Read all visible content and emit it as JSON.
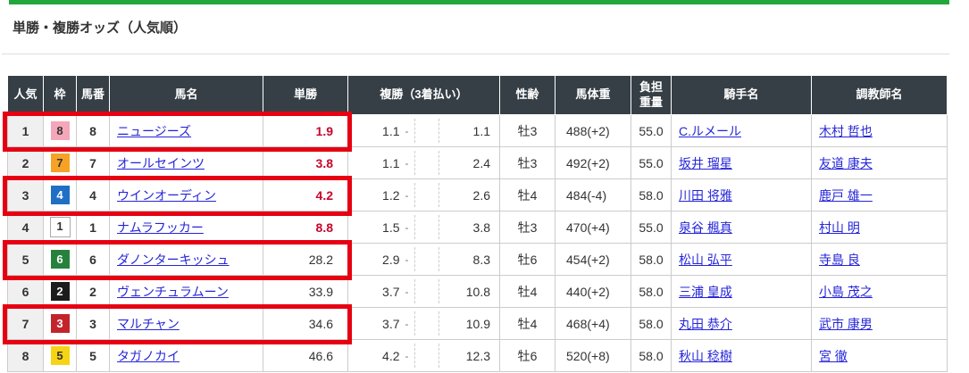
{
  "page": {
    "title": "単勝・複勝オッズ（人気順）",
    "colors": {
      "accent_green_bar": "#22a73c",
      "highlight_box_red": "#e60012",
      "hot_odds_red": "#c9042c",
      "link_blue": "#2525d9",
      "header_bg": "#363f46",
      "rank_column_bg": "#f0f0f0",
      "frame_1_white": "#ffffff",
      "frame_2_black": "#1c1c1c",
      "frame_3_red": "#c3242b",
      "frame_4_blue": "#1f6fc5",
      "frame_5_yellow": "#f6d415",
      "frame_6_green": "#27813d",
      "frame_7_orange": "#f6a226",
      "frame_8_pink": "#f4a7b9"
    }
  },
  "odds_table": {
    "headers": {
      "rank": "人気",
      "waku": "枠",
      "uma": "馬番",
      "name": "馬名",
      "tan": "単勝",
      "fuku": "複勝（3着払い）",
      "sei": "性齢",
      "weight": "馬体重",
      "futan_line1": "負担",
      "futan_line2": "重量",
      "jockey": "騎手名",
      "trainer": "調教師名"
    },
    "fuku_separator": "-",
    "rows": [
      {
        "rank": "1",
        "waku": "8",
        "uma": "8",
        "name": "ニュージーズ",
        "tan": "1.9",
        "tan_hot": true,
        "fuku_low": "1.1",
        "fuku_high": "1.1",
        "sei": "牡3",
        "weight": "488(+2)",
        "futan": "55.0",
        "jockey": "C.ルメール",
        "trainer": "木村 哲也",
        "highlighted": true
      },
      {
        "rank": "2",
        "waku": "7",
        "uma": "7",
        "name": "オールセインツ",
        "tan": "3.8",
        "tan_hot": true,
        "fuku_low": "1.1",
        "fuku_high": "2.4",
        "sei": "牡3",
        "weight": "492(+2)",
        "futan": "55.0",
        "jockey": "坂井 瑠星",
        "trainer": "友道 康夫",
        "highlighted": false
      },
      {
        "rank": "3",
        "waku": "4",
        "uma": "4",
        "name": "ウインオーディン",
        "tan": "4.2",
        "tan_hot": true,
        "fuku_low": "1.2",
        "fuku_high": "2.6",
        "sei": "牡4",
        "weight": "484(-4)",
        "futan": "58.0",
        "jockey": "川田 将雅",
        "trainer": "鹿戸 雄一",
        "highlighted": true
      },
      {
        "rank": "4",
        "waku": "1",
        "uma": "1",
        "name": "ナムラフッカー",
        "tan": "8.8",
        "tan_hot": true,
        "fuku_low": "1.5",
        "fuku_high": "3.8",
        "sei": "牡3",
        "weight": "470(+4)",
        "futan": "55.0",
        "jockey": "泉谷 楓真",
        "trainer": "村山 明",
        "highlighted": false
      },
      {
        "rank": "5",
        "waku": "6",
        "uma": "6",
        "name": "ダノンターキッシュ",
        "tan": "28.2",
        "tan_hot": false,
        "fuku_low": "2.9",
        "fuku_high": "8.3",
        "sei": "牡6",
        "weight": "454(+2)",
        "futan": "58.0",
        "jockey": "松山 弘平",
        "trainer": "寺島 良",
        "highlighted": true
      },
      {
        "rank": "6",
        "waku": "2",
        "uma": "2",
        "name": "ヴェンチュラムーン",
        "tan": "33.9",
        "tan_hot": false,
        "fuku_low": "3.7",
        "fuku_high": "10.8",
        "sei": "牡4",
        "weight": "440(+2)",
        "futan": "58.0",
        "jockey": "三浦 皇成",
        "trainer": "小島 茂之",
        "highlighted": false
      },
      {
        "rank": "7",
        "waku": "3",
        "uma": "3",
        "name": "マルチャン",
        "tan": "34.6",
        "tan_hot": false,
        "fuku_low": "3.7",
        "fuku_high": "10.9",
        "sei": "牡4",
        "weight": "468(+4)",
        "futan": "58.0",
        "jockey": "丸田 恭介",
        "trainer": "武市 康男",
        "highlighted": true
      },
      {
        "rank": "8",
        "waku": "5",
        "uma": "5",
        "name": "タガノカイ",
        "tan": "46.6",
        "tan_hot": false,
        "fuku_low": "4.2",
        "fuku_high": "12.3",
        "sei": "牡6",
        "weight": "520(+8)",
        "futan": "58.0",
        "jockey": "秋山 稔樹",
        "trainer": "宮 徹",
        "highlighted": false
      }
    ]
  }
}
